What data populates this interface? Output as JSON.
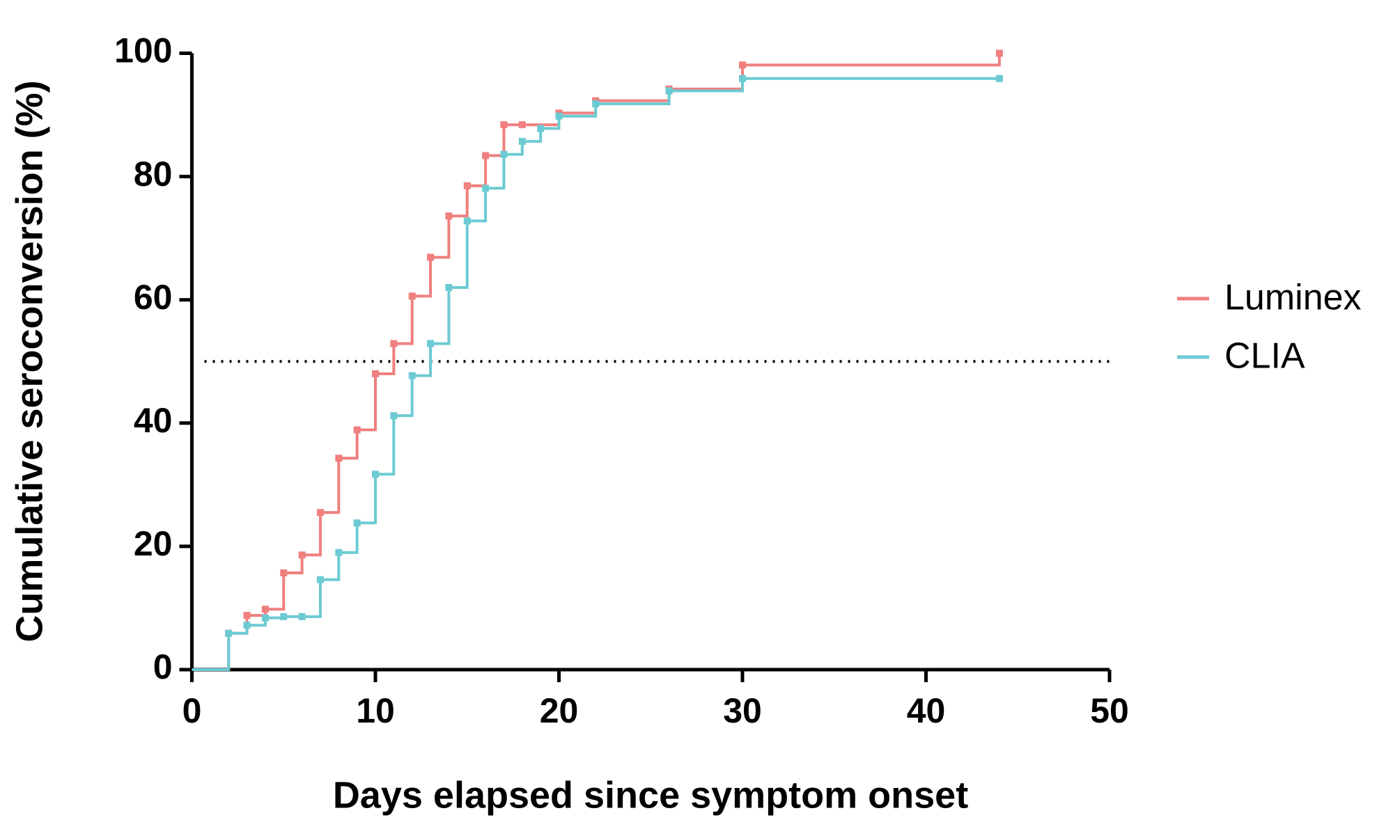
{
  "chart_data": {
    "type": "step",
    "xlabel": "Days elapsed since symptom onset",
    "ylabel": "Cumulative seroconversion (%)",
    "xlim": [
      0,
      50
    ],
    "xticks": [
      0,
      10,
      20,
      30,
      40,
      50
    ],
    "ylim": [
      0,
      100
    ],
    "yticks": [
      0,
      20,
      40,
      60,
      80,
      100
    ],
    "reference_line": 50,
    "legend": "right",
    "series": [
      {
        "name": "Luminex",
        "color": "#f07f7f",
        "x": [
          0,
          2,
          3,
          4,
          5,
          6,
          7,
          8,
          9,
          10,
          11,
          12,
          13,
          14,
          15,
          16,
          17,
          18,
          20,
          22,
          26,
          30,
          44
        ],
        "values": [
          0,
          5.9,
          8.8,
          9.8,
          15.7,
          18.6,
          25.5,
          34.3,
          38.9,
          48.0,
          52.9,
          60.6,
          66.9,
          73.6,
          78.5,
          83.4,
          88.4,
          88.4,
          90.3,
          92.3,
          94.2,
          98.1,
          100
        ]
      },
      {
        "name": "CLIA",
        "color": "#6ccad3",
        "x": [
          0,
          2,
          3,
          4,
          5,
          6,
          7,
          8,
          9,
          10,
          11,
          12,
          13,
          14,
          15,
          16,
          17,
          18,
          19,
          20,
          22,
          26,
          30,
          44
        ],
        "values": [
          0,
          5.9,
          7.2,
          8.4,
          8.6,
          8.6,
          14.6,
          19.0,
          23.8,
          31.7,
          41.2,
          47.7,
          52.9,
          62.0,
          72.8,
          78.1,
          83.6,
          85.7,
          87.8,
          89.8,
          91.8,
          93.9,
          95.9,
          95.9
        ]
      }
    ]
  }
}
